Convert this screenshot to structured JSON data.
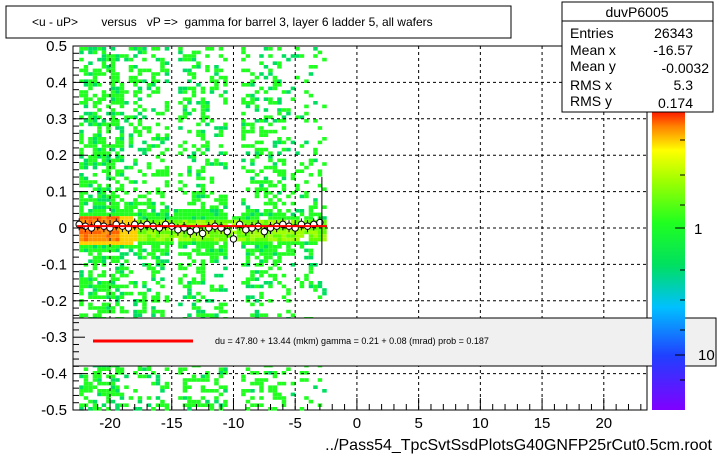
{
  "chart_data": {
    "type": "scatter",
    "title": "<u - uP>       versus   vP =>  gamma for barrel 3, layer 6 ladder 5, all wafers",
    "xlabel": "../Pass54_TpcSvtSsdPlotsG40GNFP25rCut0.5cm.root",
    "ylabel": "",
    "xlim": [
      -23,
      23.5
    ],
    "ylim": [
      -0.5,
      0.5
    ],
    "x_ticks": [
      -20,
      -15,
      -10,
      -5,
      0,
      5,
      10,
      15,
      20
    ],
    "y_ticks": [
      -0.5,
      -0.4,
      -0.3,
      -0.2,
      -0.1,
      0,
      0.1,
      0.2,
      0.3,
      0.4,
      0.5
    ],
    "x_tick_labels": [
      "-20",
      "-15",
      "-10",
      "-5",
      "0",
      "5",
      "10",
      "15",
      "20"
    ],
    "y_tick_labels": [
      "-0.5",
      "-0.4",
      "-0.3",
      "-0.2",
      "-0.1",
      "0",
      "0.1",
      "0.2",
      "0.3",
      "0.4",
      "0.5"
    ],
    "grid": true,
    "stats": {
      "name": "duvP6005",
      "rows": [
        {
          "label": "Entries",
          "value": "26343"
        },
        {
          "label": "Mean x",
          "value": "-16.57"
        },
        {
          "label": "Mean y",
          "value": "-0.0032"
        },
        {
          "label": "RMS x",
          "value": "5.3"
        },
        {
          "label": "RMS y",
          "value": "0.174"
        }
      ]
    },
    "colorbar": {
      "labels": [
        "1",
        "10"
      ],
      "label_positions": [
        1,
        10
      ]
    },
    "fit": {
      "text": "du =    47.80 +  13.44 (mkm) gamma =    0.21 +  0.08 (mrad) prob = 0.187",
      "line_color": "#ff0000",
      "y_value": 0.005
    },
    "profile_points": [
      {
        "x": -22.5,
        "y": 0.01
      },
      {
        "x": -22.0,
        "y": 0.005
      },
      {
        "x": -21.5,
        "y": 0.0
      },
      {
        "x": -21.0,
        "y": 0.01
      },
      {
        "x": -20.5,
        "y": 0.005
      },
      {
        "x": -20.0,
        "y": 0.0
      },
      {
        "x": -19.5,
        "y": 0.01
      },
      {
        "x": -19.0,
        "y": 0.005
      },
      {
        "x": -18.5,
        "y": 0.0
      },
      {
        "x": -18.0,
        "y": 0.01
      },
      {
        "x": -17.5,
        "y": 0.005
      },
      {
        "x": -17.0,
        "y": 0.01
      },
      {
        "x": -16.5,
        "y": 0.005
      },
      {
        "x": -16.0,
        "y": 0.0
      },
      {
        "x": -15.5,
        "y": 0.01
      },
      {
        "x": -15.0,
        "y": 0.005
      },
      {
        "x": -14.5,
        "y": -0.005
      },
      {
        "x": -14.0,
        "y": 0.0
      },
      {
        "x": -13.5,
        "y": -0.01
      },
      {
        "x": -13.0,
        "y": -0.005
      },
      {
        "x": -12.5,
        "y": -0.015
      },
      {
        "x": -12.0,
        "y": 0.0
      },
      {
        "x": -11.5,
        "y": 0.005
      },
      {
        "x": -11.0,
        "y": 0.0
      },
      {
        "x": -10.5,
        "y": -0.01
      },
      {
        "x": -10.0,
        "y": -0.03
      },
      {
        "x": -9.5,
        "y": 0.01
      },
      {
        "x": -9.0,
        "y": -0.005
      },
      {
        "x": -8.5,
        "y": 0.0
      },
      {
        "x": -8.0,
        "y": 0.005
      },
      {
        "x": -7.5,
        "y": -0.01
      },
      {
        "x": -7.0,
        "y": 0.0
      },
      {
        "x": -6.5,
        "y": 0.005
      },
      {
        "x": -6.0,
        "y": 0.01
      },
      {
        "x": -5.5,
        "y": 0.005
      },
      {
        "x": -5.0,
        "y": 0.0
      },
      {
        "x": -4.5,
        "y": 0.01
      },
      {
        "x": -4.0,
        "y": 0.005
      },
      {
        "x": -3.5,
        "y": 0.01
      },
      {
        "x": -3.0,
        "y": 0.015
      }
    ],
    "colors": {
      "grid": "#000000",
      "frame": "#000000",
      "fit_box_bg": "#f0f0f0",
      "point_fill": "#ffffff"
    }
  }
}
